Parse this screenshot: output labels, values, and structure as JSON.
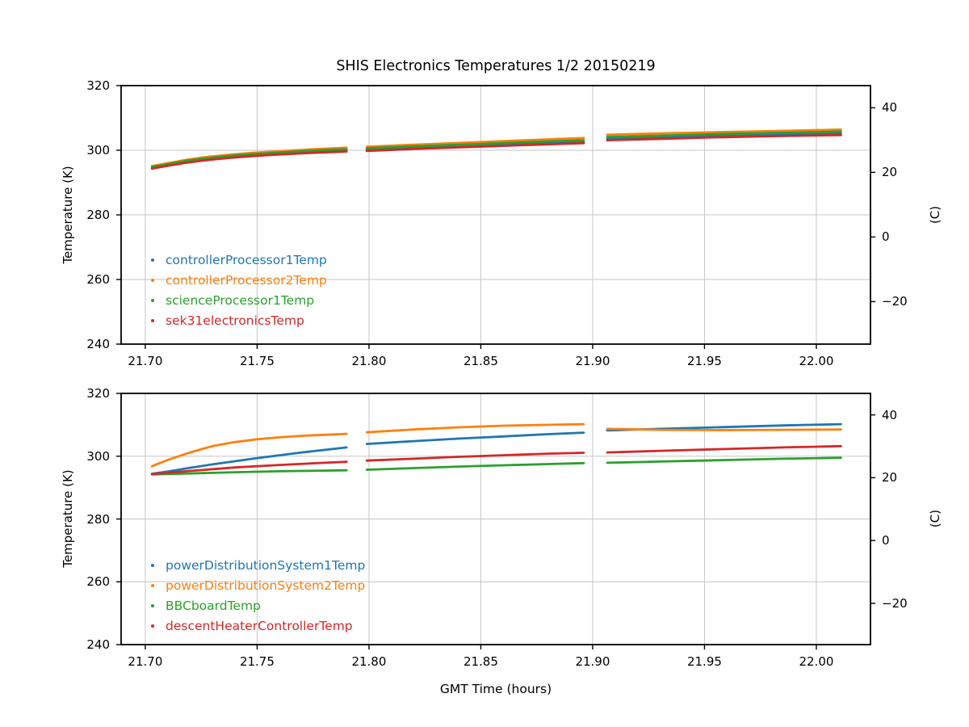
{
  "figure": {
    "title": "SHIS Electronics Temperatures 1/2 20150219",
    "xlabel": "GMT Time (hours)",
    "ylabel_left": "Temperature (K)",
    "ylabel_right": "(C)",
    "background": "#ffffff",
    "grid_color": "#c6c6c6",
    "spine_color": "#000000"
  },
  "chart_data": [
    {
      "type": "line",
      "title": "SHIS Electronics Temperatures 1/2 20150219",
      "xlabel": "",
      "ylabel": "Temperature (K)",
      "ylabel_right": "(C)",
      "xlim": [
        21.6892,
        22.0242
      ],
      "ylim": [
        240,
        320
      ],
      "xticks": [
        21.7,
        21.75,
        21.8,
        21.85,
        21.9,
        21.95,
        22.0
      ],
      "xtick_labels": [
        "21.70",
        "21.75",
        "21.80",
        "21.85",
        "21.90",
        "21.95",
        "22.00"
      ],
      "yticks": [
        240,
        260,
        280,
        300,
        320
      ],
      "ytick_labels": [
        "240",
        "260",
        "280",
        "300",
        "320"
      ],
      "yticks_right_C": [
        40,
        20,
        0,
        -20
      ],
      "ytick_right_labels": [
        "40",
        "20",
        "0",
        "−20"
      ],
      "grid": true,
      "legend_position": "lower-left",
      "series": [
        {
          "name": "controllerProcessor1Temp",
          "color": "#1f77b4",
          "segments": [
            [
              [
                21.703,
                294.5
              ],
              [
                21.71,
                295.4
              ],
              [
                21.718,
                296.4
              ],
              [
                21.727,
                297.2
              ],
              [
                21.737,
                297.9
              ],
              [
                21.748,
                298.5
              ],
              [
                21.76,
                299.0
              ],
              [
                21.775,
                299.5
              ],
              [
                21.79,
                299.9
              ]
            ],
            [
              [
                21.799,
                300.1
              ],
              [
                21.82,
                300.7
              ],
              [
                21.845,
                301.3
              ],
              [
                21.87,
                301.9
              ],
              [
                21.896,
                302.5
              ]
            ],
            [
              [
                21.9065,
                303.6
              ],
              [
                21.93,
                304.0
              ],
              [
                21.955,
                304.5
              ],
              [
                21.985,
                304.9
              ],
              [
                22.011,
                305.2
              ]
            ]
          ]
        },
        {
          "name": "controllerProcessor2Temp",
          "color": "#ff7f0e",
          "segments": [
            [
              [
                21.703,
                295.1
              ],
              [
                21.71,
                296.0
              ],
              [
                21.718,
                297.0
              ],
              [
                21.727,
                297.9
              ],
              [
                21.737,
                298.6
              ],
              [
                21.748,
                299.2
              ],
              [
                21.76,
                299.7
              ],
              [
                21.775,
                300.3
              ],
              [
                21.79,
                300.8
              ]
            ],
            [
              [
                21.799,
                301.1
              ],
              [
                21.82,
                301.7
              ],
              [
                21.845,
                302.4
              ],
              [
                21.87,
                303.1
              ],
              [
                21.896,
                303.8
              ]
            ],
            [
              [
                21.9065,
                304.8
              ],
              [
                21.93,
                305.2
              ],
              [
                21.955,
                305.6
              ],
              [
                21.985,
                306.0
              ],
              [
                22.011,
                306.4
              ]
            ]
          ]
        },
        {
          "name": "scienceProcessor1Temp",
          "color": "#2ca02c",
          "segments": [
            [
              [
                21.703,
                294.8
              ],
              [
                21.71,
                295.7
              ],
              [
                21.718,
                296.7
              ],
              [
                21.727,
                297.5
              ],
              [
                21.737,
                298.2
              ],
              [
                21.748,
                298.8
              ],
              [
                21.76,
                299.3
              ],
              [
                21.775,
                299.9
              ],
              [
                21.79,
                300.3
              ]
            ],
            [
              [
                21.799,
                300.6
              ],
              [
                21.82,
                301.2
              ],
              [
                21.845,
                301.8
              ],
              [
                21.87,
                302.5
              ],
              [
                21.896,
                303.1
              ]
            ],
            [
              [
                21.9065,
                304.1
              ],
              [
                21.93,
                304.5
              ],
              [
                21.955,
                305.0
              ],
              [
                21.985,
                305.4
              ],
              [
                22.011,
                305.8
              ]
            ]
          ]
        },
        {
          "name": "sek31electronicsTemp",
          "color": "#d62728",
          "segments": [
            [
              [
                21.703,
                294.3
              ],
              [
                21.71,
                295.2
              ],
              [
                21.718,
                296.1
              ],
              [
                21.727,
                296.9
              ],
              [
                21.737,
                297.6
              ],
              [
                21.748,
                298.2
              ],
              [
                21.76,
                298.7
              ],
              [
                21.775,
                299.2
              ],
              [
                21.79,
                299.6
              ]
            ],
            [
              [
                21.799,
                299.8
              ],
              [
                21.82,
                300.4
              ],
              [
                21.845,
                301.0
              ],
              [
                21.87,
                301.6
              ],
              [
                21.896,
                302.2
              ]
            ],
            [
              [
                21.9065,
                303.1
              ],
              [
                21.93,
                303.5
              ],
              [
                21.955,
                304.0
              ],
              [
                21.985,
                304.4
              ],
              [
                22.011,
                304.7
              ]
            ]
          ]
        }
      ]
    },
    {
      "type": "line",
      "title": "",
      "xlabel": "GMT Time (hours)",
      "ylabel": "Temperature (K)",
      "ylabel_right": "(C)",
      "xlim": [
        21.6892,
        22.0242
      ],
      "ylim": [
        240,
        320
      ],
      "xticks": [
        21.7,
        21.75,
        21.8,
        21.85,
        21.9,
        21.95,
        22.0
      ],
      "xtick_labels": [
        "21.70",
        "21.75",
        "21.80",
        "21.85",
        "21.90",
        "21.95",
        "22.00"
      ],
      "yticks": [
        240,
        260,
        280,
        300,
        320
      ],
      "ytick_labels": [
        "240",
        "260",
        "280",
        "300",
        "320"
      ],
      "yticks_right_C": [
        40,
        20,
        0,
        -20
      ],
      "ytick_right_labels": [
        "40",
        "20",
        "0",
        "−20"
      ],
      "grid": true,
      "legend_position": "lower-left",
      "series": [
        {
          "name": "powerDistributionSystem1Temp",
          "color": "#1f77b4",
          "segments": [
            [
              [
                21.703,
                294.4
              ],
              [
                21.71,
                295.1
              ],
              [
                21.72,
                296.3
              ],
              [
                21.73,
                297.4
              ],
              [
                21.74,
                298.4
              ],
              [
                21.75,
                299.4
              ],
              [
                21.76,
                300.3
              ],
              [
                21.77,
                301.2
              ],
              [
                21.78,
                302.0
              ],
              [
                21.79,
                302.8
              ]
            ],
            [
              [
                21.799,
                303.9
              ],
              [
                21.82,
                304.8
              ],
              [
                21.84,
                305.6
              ],
              [
                21.86,
                306.3
              ],
              [
                21.88,
                307.0
              ],
              [
                21.896,
                307.5
              ]
            ],
            [
              [
                21.9065,
                308.2
              ],
              [
                21.93,
                308.7
              ],
              [
                21.955,
                309.2
              ],
              [
                21.985,
                309.8
              ],
              [
                22.011,
                310.2
              ]
            ]
          ]
        },
        {
          "name": "powerDistributionSystem2Temp",
          "color": "#ff7f0e",
          "segments": [
            [
              [
                21.703,
                296.8
              ],
              [
                21.71,
                298.8
              ],
              [
                21.72,
                301.2
              ],
              [
                21.73,
                303.2
              ],
              [
                21.74,
                304.5
              ],
              [
                21.75,
                305.4
              ],
              [
                21.76,
                306.0
              ],
              [
                21.77,
                306.5
              ],
              [
                21.78,
                306.8
              ],
              [
                21.79,
                307.1
              ]
            ],
            [
              [
                21.799,
                307.6
              ],
              [
                21.82,
                308.5
              ],
              [
                21.84,
                309.2
              ],
              [
                21.86,
                309.7
              ],
              [
                21.88,
                310.0
              ],
              [
                21.896,
                310.2
              ]
            ],
            [
              [
                21.9065,
                308.7
              ],
              [
                21.93,
                308.4
              ],
              [
                21.955,
                308.3
              ],
              [
                21.985,
                308.4
              ],
              [
                22.011,
                308.5
              ]
            ]
          ]
        },
        {
          "name": "BBCboardTemp",
          "color": "#2ca02c",
          "segments": [
            [
              [
                21.703,
                294.2
              ],
              [
                21.72,
                294.5
              ],
              [
                21.74,
                294.9
              ],
              [
                21.76,
                295.2
              ],
              [
                21.78,
                295.4
              ],
              [
                21.79,
                295.5
              ]
            ],
            [
              [
                21.799,
                295.7
              ],
              [
                21.82,
                296.2
              ],
              [
                21.84,
                296.7
              ],
              [
                21.86,
                297.1
              ],
              [
                21.88,
                297.5
              ],
              [
                21.896,
                297.8
              ]
            ],
            [
              [
                21.9065,
                297.9
              ],
              [
                21.93,
                298.3
              ],
              [
                21.955,
                298.7
              ],
              [
                21.985,
                299.2
              ],
              [
                22.011,
                299.5
              ]
            ]
          ]
        },
        {
          "name": "descentHeaterControllerTemp",
          "color": "#d62728",
          "segments": [
            [
              [
                21.703,
                294.3
              ],
              [
                21.72,
                295.3
              ],
              [
                21.74,
                296.4
              ],
              [
                21.76,
                297.2
              ],
              [
                21.78,
                297.9
              ],
              [
                21.79,
                298.2
              ]
            ],
            [
              [
                21.799,
                298.6
              ],
              [
                21.82,
                299.2
              ],
              [
                21.84,
                299.8
              ],
              [
                21.86,
                300.3
              ],
              [
                21.88,
                300.8
              ],
              [
                21.896,
                301.1
              ]
            ],
            [
              [
                21.9065,
                301.2
              ],
              [
                21.93,
                301.7
              ],
              [
                21.955,
                302.2
              ],
              [
                21.985,
                302.8
              ],
              [
                22.011,
                303.2
              ]
            ]
          ]
        }
      ]
    }
  ]
}
